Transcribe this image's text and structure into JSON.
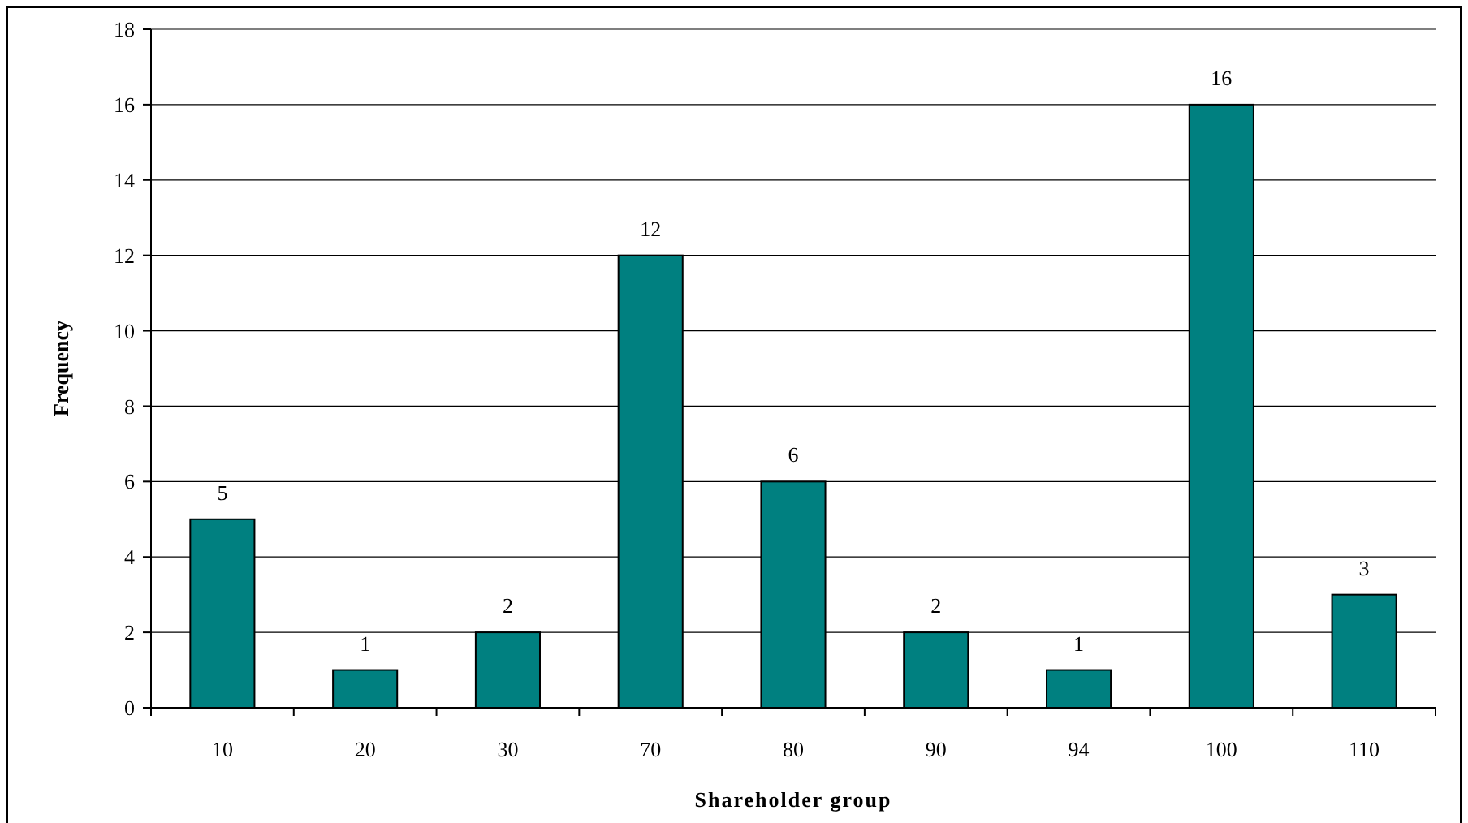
{
  "chart_data": {
    "type": "bar",
    "xlabel": "Shareholder group",
    "ylabel": "Frequency",
    "categories": [
      "10",
      "20",
      "30",
      "70",
      "80",
      "90",
      "94",
      "100",
      "110"
    ],
    "values": [
      5,
      1,
      2,
      12,
      6,
      2,
      1,
      16,
      3
    ],
    "color": "#008080",
    "ylim": [
      0,
      18
    ],
    "yticks": [
      0,
      2,
      4,
      6,
      8,
      10,
      12,
      14,
      16,
      18
    ],
    "grid": "y",
    "data_labels": true
  }
}
